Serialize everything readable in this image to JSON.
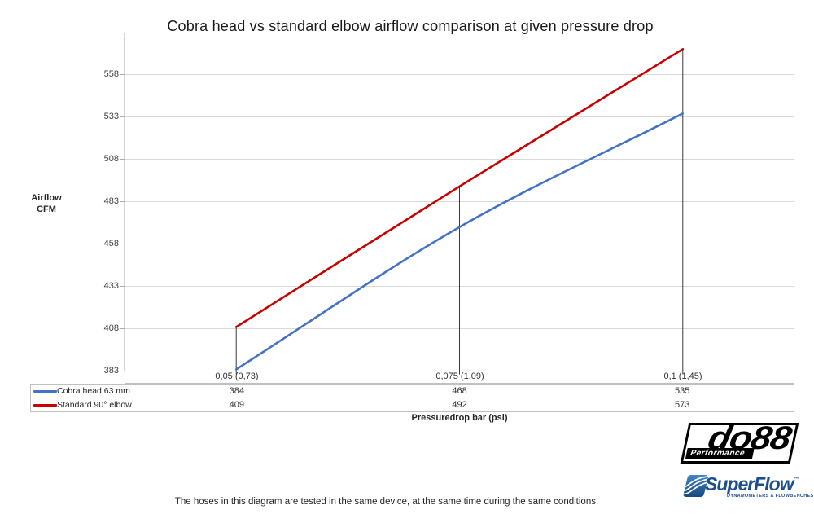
{
  "title": "Cobra head vs standard elbow airflow comparison at given pressure drop",
  "y_axis": {
    "label_line1": "Airflow",
    "label_line2": "CFM"
  },
  "x_axis": {
    "label": "Pressuredrop bar (psi)"
  },
  "chart_data": {
    "type": "line",
    "title": "Cobra head vs standard elbow airflow comparison at given pressure drop",
    "categories": [
      "0,05 (0,73)",
      "0,075 (1,09)",
      "0,1 (1,45)"
    ],
    "xlabel": "Pressuredrop bar (psi)",
    "ylabel": "Airflow CFM",
    "y_ticks": [
      383,
      408,
      433,
      458,
      483,
      508,
      533,
      558
    ],
    "ylim": [
      383,
      583
    ],
    "grid": true,
    "smooth_lines": true,
    "legend_position": "data-table-left",
    "series": [
      {
        "name": "Cobra head 63 mm",
        "color": "#4472C4",
        "values": [
          384,
          468,
          535
        ]
      },
      {
        "name": "Standard 90° elbow",
        "color": "#C80000",
        "values": [
          409,
          492,
          573
        ]
      }
    ],
    "droplines_to_axis_at_series": "Standard 90° elbow"
  },
  "footer_note": "The hoses in this diagram are tested in the same device, at the same time during the same conditions.",
  "logos": {
    "do88": {
      "name": "do88",
      "tagline": "Performance"
    },
    "superflow": {
      "name": "SuperFlow",
      "trademark": "™",
      "tagline": "DYNAMOMETERS & FLOWBENCHES"
    }
  },
  "colors": {
    "gridline": "#D9D9D9",
    "axis": "#ABABAB",
    "dropline": "#3A3A3A",
    "text": "#3F3F3F",
    "cobra_blue": "#4472C4",
    "elbow_red": "#C80000",
    "superflow_blue": "#1C4F8E",
    "do88_black": "#000000"
  }
}
